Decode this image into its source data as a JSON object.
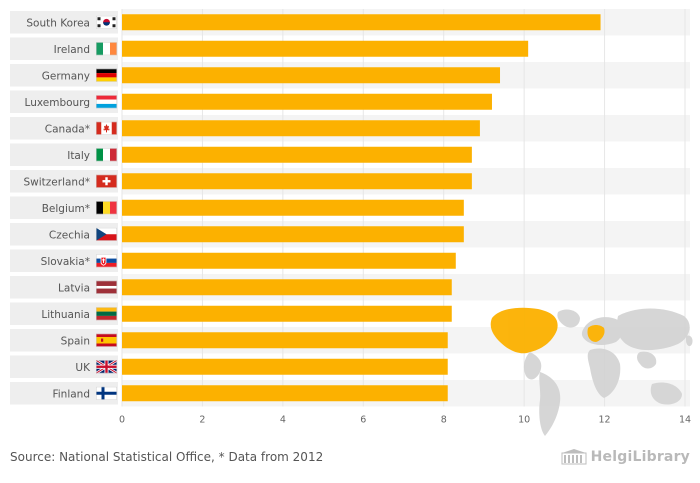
{
  "chart_data": {
    "type": "bar",
    "orientation": "horizontal",
    "categories": [
      "South Korea",
      "Ireland",
      "Germany",
      "Luxembourg",
      "Canada*",
      "Italy",
      "Switzerland*",
      "Belgium*",
      "Czechia",
      "Slovakia*",
      "Latvia",
      "Lithuania",
      "Spain",
      "UK",
      "Finland"
    ],
    "values": [
      11.9,
      10.1,
      9.4,
      9.2,
      8.9,
      8.7,
      8.7,
      8.5,
      8.5,
      8.3,
      8.2,
      8.2,
      8.1,
      8.1,
      8.1
    ],
    "xlim": [
      0,
      14
    ],
    "xticks": [
      "0",
      "2",
      "4",
      "6",
      "8",
      "10",
      "12",
      "14"
    ],
    "title": "",
    "xlabel": "",
    "ylabel": "",
    "bar_color": "#fcb100",
    "legend": "none"
  },
  "flag_icons": [
    "south-korea-flag-icon",
    "ireland-flag-icon",
    "germany-flag-icon",
    "luxembourg-flag-icon",
    "canada-flag-icon",
    "italy-flag-icon",
    "switzerland-flag-icon",
    "belgium-flag-icon",
    "czechia-flag-icon",
    "slovakia-flag-icon",
    "latvia-flag-icon",
    "lithuania-flag-icon",
    "spain-flag-icon",
    "uk-flag-icon",
    "finland-flag-icon"
  ],
  "footer": {
    "source": "Source: National Statistical Office, * Data from 2012",
    "brand": "HelgiLibrary"
  }
}
